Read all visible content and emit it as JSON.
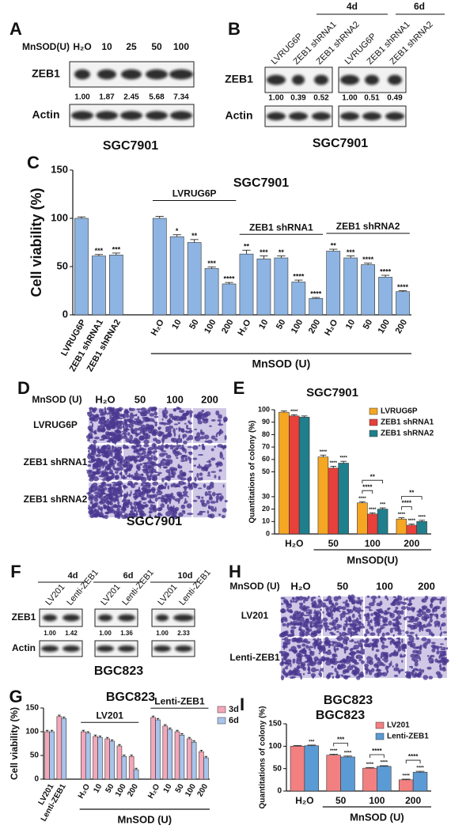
{
  "panels": {
    "A": {
      "label": "A",
      "dose_label": "MnSOD(U)",
      "lanes": [
        "H₂O",
        "10",
        "25",
        "50",
        "100"
      ],
      "rows": [
        "ZEB1",
        "Actin"
      ],
      "ratios": [
        "1.00",
        "1.87",
        "2.45",
        "5.68",
        "7.34"
      ],
      "cell_line": "SGC7901"
    },
    "B": {
      "label": "B",
      "times": [
        "4d",
        "6d"
      ],
      "lanes": [
        "LVRUG6P",
        "ZEB1 shRNA1",
        "ZEB1 shRNA2",
        "LVRUG6P",
        "ZEB1 shRNA1",
        "ZEB1 shRNA2"
      ],
      "rows": [
        "ZEB1",
        "Actin"
      ],
      "ratios": [
        "1.00",
        "0.39",
        "0.52",
        "1.00",
        "0.51",
        "0.49"
      ],
      "cell_line": "SGC7901"
    },
    "C": {
      "label": "C"
    },
    "D": {
      "label": "D",
      "dose_label": "MnSOD (U)",
      "doses": [
        "H₂O",
        "50",
        "100",
        "200"
      ],
      "rows": [
        "LVRUG6P",
        "ZEB1 shRNA1",
        "ZEB1 shRNA2"
      ],
      "cell_line": "SGC7901"
    },
    "E": {
      "label": "E"
    },
    "F": {
      "label": "F",
      "times": [
        "4d",
        "6d",
        "10d"
      ],
      "lanes": [
        "LV201",
        "Lenti-ZEB1",
        "LV201",
        "Lenti-ZEB1",
        "LV201",
        "Lenti-ZEB1"
      ],
      "rows": [
        "ZEB1",
        "Actin"
      ],
      "ratios": [
        "1.00",
        "1.42",
        "1.00",
        "1.36",
        "1.00",
        "2.33"
      ],
      "cell_line": "BGC823"
    },
    "G": {
      "label": "G"
    },
    "H": {
      "label": "H",
      "dose_label": "MnSOD (U)",
      "doses": [
        "H₂O",
        "50",
        "100",
        "200"
      ],
      "rows": [
        "LV201",
        "Lenti-ZEB1"
      ],
      "cell_line": "BGC823"
    },
    "I": {
      "label": "I"
    }
  },
  "chart_data": [
    {
      "type": "bar",
      "title": "SGC7901",
      "ylabel": "Cell viability (%)",
      "xlabel": "MnSOD (U)",
      "ylim": [
        0,
        150
      ],
      "yticks": [
        0,
        50,
        100,
        150
      ],
      "categories": [
        "LVRUG6P",
        "ZEB1 shRNA1",
        "ZEB1 shRNA2",
        "H₂O",
        "10",
        "50",
        "100",
        "200",
        "H₂O",
        "10",
        "50",
        "100",
        "200",
        "H₂O",
        "10",
        "50",
        "100",
        "200"
      ],
      "group_labels": [
        "LVRUG6P",
        "ZEB1 shRNA1",
        "ZEB1 shRNA2"
      ],
      "series": [
        {
          "color": "#8db4e2",
          "values": [
            100,
            61,
            62,
            100,
            81,
            75,
            48,
            32,
            63,
            58,
            59,
            34,
            17,
            66,
            59,
            52,
            39,
            24
          ],
          "errors": [
            1.5,
            1.5,
            2,
            2,
            2,
            3,
            1.5,
            1.5,
            4,
            3,
            2,
            2,
            1,
            2,
            2,
            1.5,
            2,
            1
          ],
          "stars": [
            null,
            "***",
            "***",
            null,
            "*",
            "**",
            "***",
            "****",
            "**",
            "***",
            "**",
            "****",
            "****",
            "**",
            "***",
            "****",
            "****",
            "****"
          ]
        }
      ]
    },
    {
      "type": "bar",
      "title": "SGC7901",
      "ylabel": "Quantitations of colony (%)",
      "xlabel": "MnSOD(U)",
      "ylim": [
        0,
        100
      ],
      "yticks": [
        0,
        10,
        20,
        30,
        50,
        60,
        70,
        80,
        90,
        100
      ],
      "legend": "upper right",
      "categories": [
        "H₂O",
        "50",
        "100",
        "200"
      ],
      "series": [
        {
          "name": "LVRUG6P",
          "color": "#f5a623",
          "values": [
            98,
            62,
            25,
            12
          ],
          "errors": [
            1,
            1.5,
            1,
            1
          ],
          "stars": [
            null,
            "****",
            "****",
            "****"
          ]
        },
        {
          "name": "ZEB1 shRNA1",
          "color": "#e8403a",
          "values": [
            95,
            53,
            16,
            7
          ],
          "errors": [
            1,
            1.5,
            1,
            1
          ],
          "stars": [
            "****",
            "****",
            "****",
            "****"
          ]
        },
        {
          "name": "ZEB1 shRNA2",
          "color": "#1f7f8c",
          "values": [
            94,
            57,
            20,
            10
          ],
          "errors": [
            1,
            1.5,
            1,
            1
          ],
          "stars": [
            null,
            "****",
            "***",
            "****"
          ]
        }
      ],
      "annotations": [
        "**",
        "****",
        "**",
        "****"
      ]
    },
    {
      "type": "bar",
      "title": "BGC823",
      "ylabel": "Cell viability (%)",
      "xlabel": "MnSOD (U)",
      "ylim": [
        0,
        150
      ],
      "yticks": [
        0,
        50,
        100,
        150
      ],
      "legend": "right",
      "categories": [
        "LV201",
        "Lenti-ZEB1",
        "H₂O",
        "10",
        "50",
        "100",
        "200",
        "H₂O",
        "10",
        "50",
        "100",
        "200"
      ],
      "group_labels": [
        "LV201",
        "Lenti-ZEB1"
      ],
      "series": [
        {
          "name": "3d",
          "color": "#f4a7b9",
          "values": [
            100,
            132,
            100,
            90,
            85,
            70,
            48,
            130,
            112,
            100,
            85,
            58
          ],
          "errors": [
            3,
            3,
            3,
            3,
            3,
            3,
            3,
            3,
            3,
            3,
            3,
            3
          ]
        },
        {
          "name": "6d",
          "color": "#a9c4eb",
          "values": [
            100,
            128,
            97,
            88,
            80,
            48,
            20,
            125,
            105,
            93,
            78,
            45
          ],
          "errors": [
            3,
            3,
            3,
            3,
            3,
            3,
            3,
            3,
            3,
            3,
            3,
            3
          ]
        }
      ]
    },
    {
      "type": "bar",
      "title": "BGC823",
      "ylabel": "Quantitations of colony (%)",
      "xlabel": "MnSOD (U)",
      "ylim": [
        0,
        150
      ],
      "yticks": [
        0,
        50,
        100,
        150
      ],
      "legend": "upper right",
      "categories": [
        "H₂O",
        "50",
        "100",
        "200"
      ],
      "series": [
        {
          "name": "LV201",
          "color": "#f28080",
          "values": [
            100,
            80,
            51,
            25
          ],
          "errors": [
            1.5,
            2,
            1.5,
            1.5
          ],
          "stars": [
            null,
            "****",
            "****",
            "****"
          ]
        },
        {
          "name": "Lenti-ZEB1",
          "color": "#5b9bd5",
          "values": [
            101,
            76,
            55,
            42
          ],
          "errors": [
            1.5,
            2,
            1.5,
            2
          ],
          "stars": [
            "***",
            "****",
            "****",
            "****"
          ]
        }
      ],
      "annotations": [
        "***",
        "****",
        "****"
      ]
    }
  ]
}
